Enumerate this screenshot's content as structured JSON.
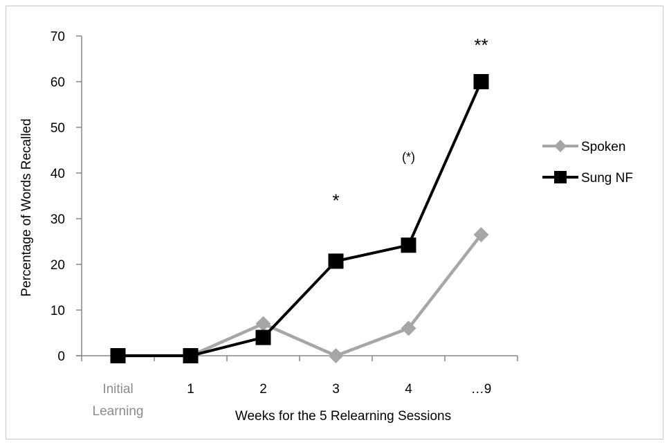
{
  "chart_data": {
    "type": "line",
    "title": "",
    "ylabel": "Percentage of Words Recalled",
    "xlabel": "Weeks for the 5 Relearning Sessions",
    "categories": [
      {
        "lines": [
          "Initial",
          "Learning"
        ],
        "muted": true
      },
      {
        "lines": [
          "1"
        ],
        "muted": false
      },
      {
        "lines": [
          "2"
        ],
        "muted": false
      },
      {
        "lines": [
          "3"
        ],
        "muted": false
      },
      {
        "lines": [
          "4"
        ],
        "muted": false
      },
      {
        "lines": [
          "…9"
        ],
        "muted": false
      }
    ],
    "ylim": [
      0,
      70
    ],
    "yticks": [
      0,
      10,
      20,
      30,
      40,
      50,
      60,
      70
    ],
    "series": [
      {
        "name": "Spoken",
        "marker": "diamond",
        "color": "#a6a6a6",
        "values": [
          0,
          0,
          7,
          0,
          6,
          26.5
        ]
      },
      {
        "name": "Sung NF",
        "marker": "square",
        "color": "#000000",
        "values": [
          0,
          0,
          4,
          20.7,
          24.2,
          60
        ]
      }
    ],
    "annotations": [
      {
        "text": "*",
        "category_index": 3,
        "y": 34.5,
        "size": "large"
      },
      {
        "text": "(*)",
        "category_index": 4,
        "y": 43.5,
        "size": "small"
      },
      {
        "text": "**",
        "category_index": 5,
        "y": 68.5,
        "size": "large"
      }
    ],
    "legend_position": "right",
    "grid": false
  }
}
